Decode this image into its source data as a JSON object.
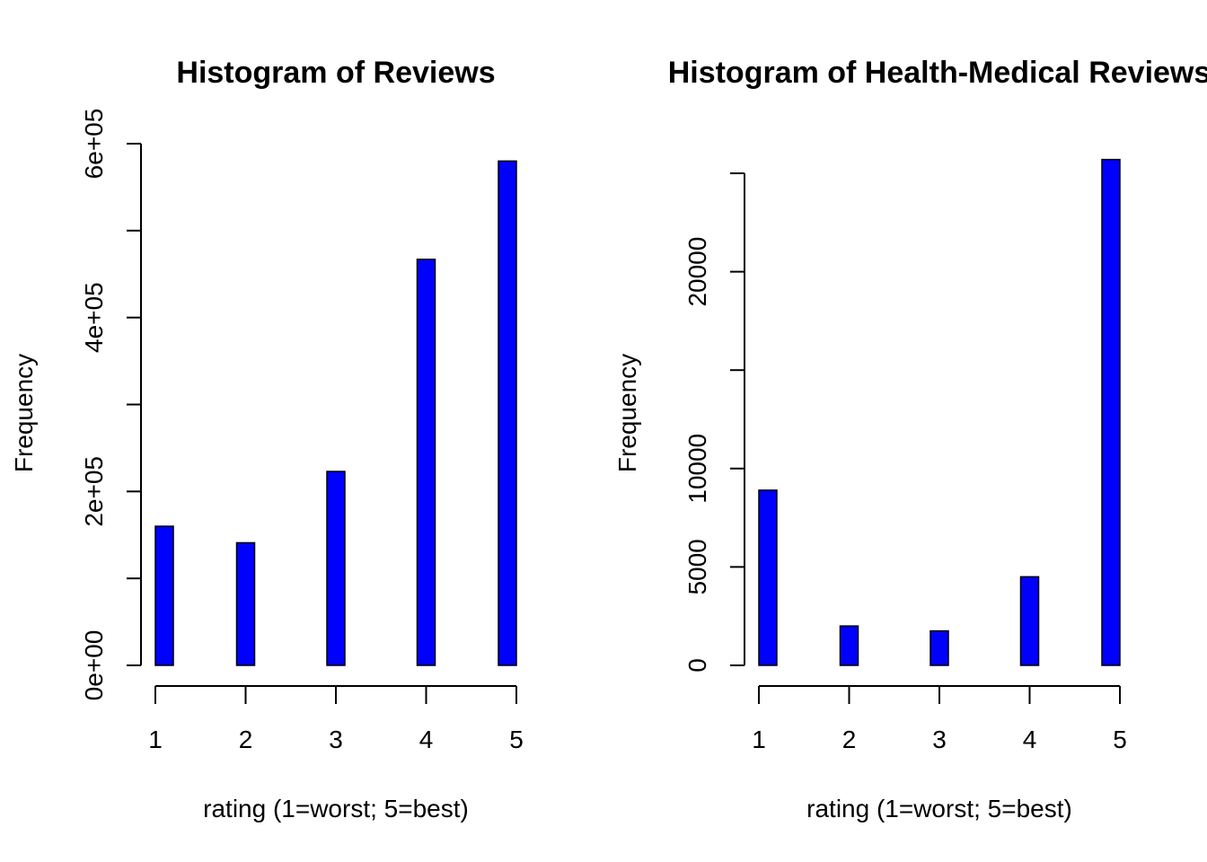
{
  "chart_data": [
    {
      "type": "bar",
      "title": "Histogram of Reviews",
      "xlabel": "rating (1=worst; 5=best)",
      "ylabel": "Frequency",
      "x_ticks": [
        "1",
        "2",
        "3",
        "4",
        "5"
      ],
      "xlim": [
        1,
        5
      ],
      "y_ticks": [
        0,
        200000,
        400000,
        600000
      ],
      "y_tick_labels": [
        "0e+00",
        "2e+05",
        "4e+05",
        "6e+05"
      ],
      "y_minor_ticks": [
        100000,
        300000,
        500000
      ],
      "ylim": [
        0,
        600000
      ],
      "bins": [
        {
          "rating": 1,
          "value": 160000
        },
        {
          "rating": 2,
          "value": 141000
        },
        {
          "rating": 3,
          "value": 223000
        },
        {
          "rating": 4,
          "value": 467000
        },
        {
          "rating": 5,
          "value": 580000
        }
      ],
      "bar_color": "#0000ff",
      "grid": false
    },
    {
      "type": "bar",
      "title": "Histogram of Health-Medical Reviews",
      "xlabel": "rating (1=worst; 5=best)",
      "ylabel": "Frequency",
      "x_ticks": [
        "1",
        "2",
        "3",
        "4",
        "5"
      ],
      "xlim": [
        1,
        5
      ],
      "y_ticks": [
        0,
        5000,
        10000,
        20000
      ],
      "y_tick_labels": [
        "0",
        "5000",
        "10000",
        "20000"
      ],
      "y_minor_ticks": [
        15000,
        25000
      ],
      "ylim": [
        0,
        25000
      ],
      "bins": [
        {
          "rating": 1,
          "value": 8900
        },
        {
          "rating": 2,
          "value": 2000
        },
        {
          "rating": 3,
          "value": 1750
        },
        {
          "rating": 4,
          "value": 4500
        },
        {
          "rating": 5,
          "value": 25700
        }
      ],
      "bar_color": "#0000ff",
      "grid": false
    }
  ]
}
